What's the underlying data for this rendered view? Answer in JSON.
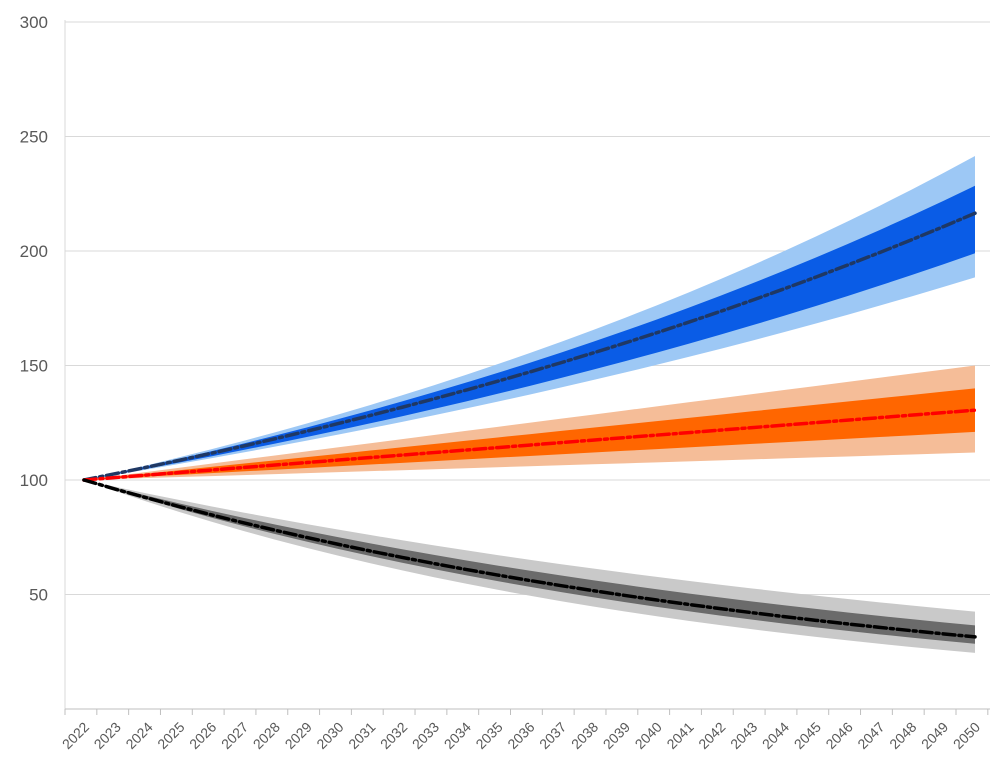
{
  "chart_data": {
    "type": "area",
    "title": "",
    "xlabel": "",
    "ylabel": "",
    "x": [
      2022,
      2023,
      2024,
      2025,
      2026,
      2027,
      2028,
      2029,
      2030,
      2031,
      2032,
      2033,
      2034,
      2035,
      2036,
      2037,
      2038,
      2039,
      2040,
      2041,
      2042,
      2043,
      2044,
      2045,
      2046,
      2047,
      2048,
      2049,
      2050
    ],
    "x_tick_labels": [
      "2022",
      "2023",
      "2024",
      "2025",
      "2026",
      "2027",
      "2028",
      "2029",
      "2030",
      "2031",
      "2032",
      "2033",
      "2034",
      "2035",
      "2036",
      "2037",
      "2038",
      "2039",
      "2040",
      "2041",
      "2042",
      "2043",
      "2044",
      "2045",
      "2046",
      "2047",
      "2048",
      "2049",
      "2050"
    ],
    "ylim": [
      0,
      300
    ],
    "y_ticks": [
      50,
      100,
      150,
      200,
      250,
      300
    ],
    "grid": "horizontal",
    "legend": "none",
    "series": [
      {
        "start_value": 100,
        "end_value": 216.5,
        "central": "exponential",
        "band_80_end": [
          199,
          228.5
        ],
        "band_95_end": [
          188.5,
          241.5
        ],
        "colors": {
          "central": "#1f3864",
          "band_80": "#0a5ce6",
          "band_95": "#9dc8f5"
        }
      },
      {
        "start_value": 100,
        "end_value": 130.5,
        "central": "linear",
        "band_80_end": [
          121,
          140
        ],
        "band_95_end": [
          112,
          150
        ],
        "colors": {
          "central": "#ff0000",
          "band_80": "#ff6600",
          "band_95": "#f5bd98"
        }
      },
      {
        "start_value": 100,
        "end_value": 31.5,
        "central": "exponential",
        "band_80_end": [
          28.5,
          36.5
        ],
        "band_95_end": [
          24.5,
          42.5
        ],
        "colors": {
          "central": "#000000",
          "band_80": "#6b6b6b",
          "band_95": "#c9c9c9"
        }
      }
    ]
  }
}
